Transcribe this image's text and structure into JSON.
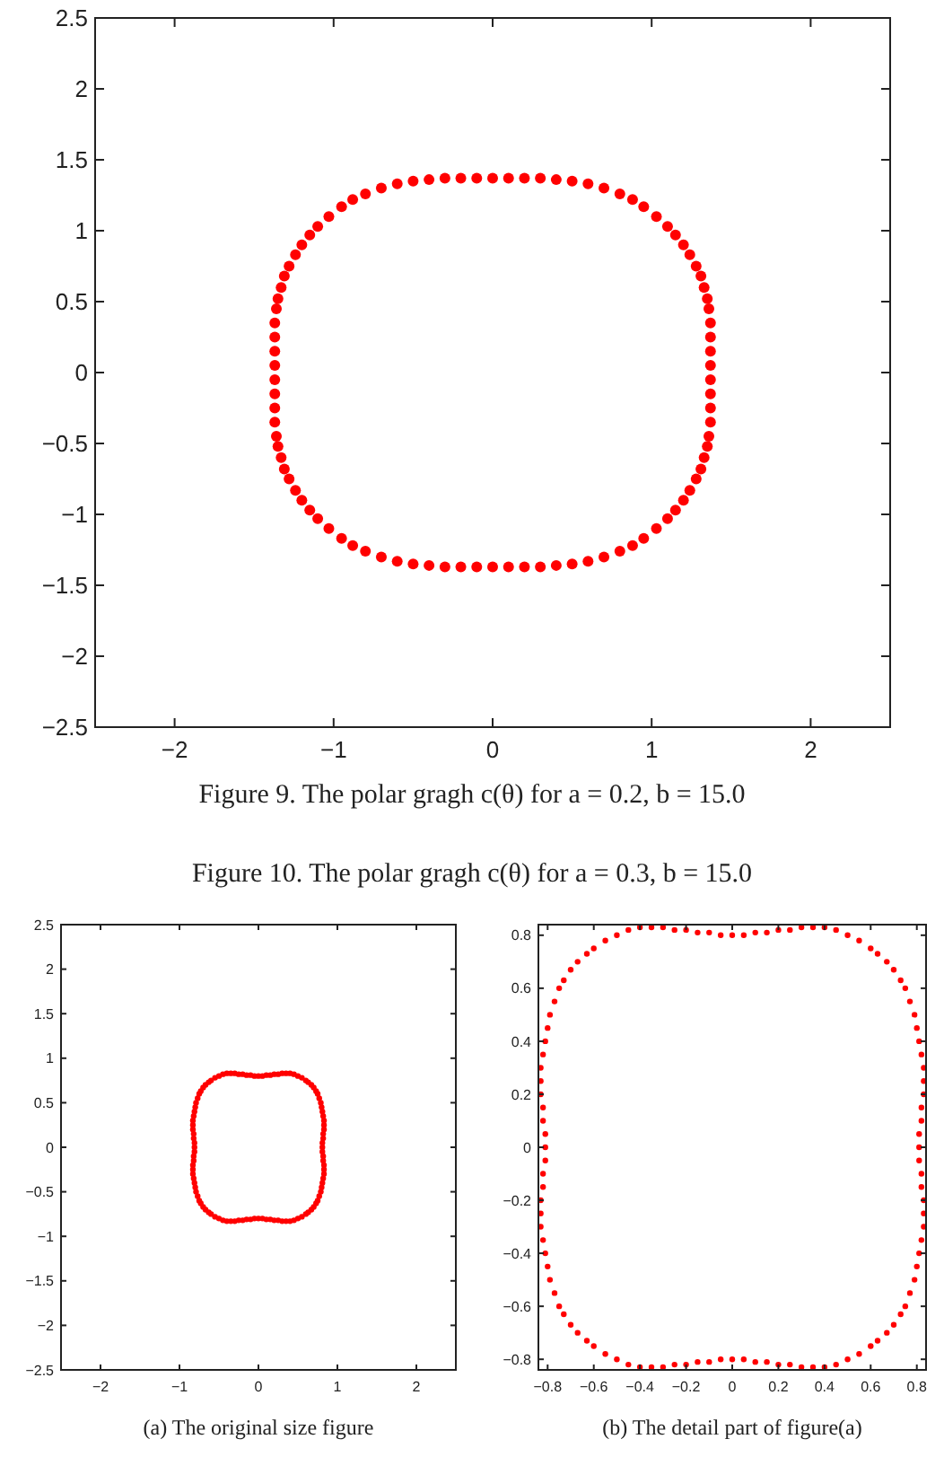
{
  "chart_data": [
    {
      "type": "scatter",
      "marker": "circle",
      "title": "Figure 9.   The polar gragh c(θ) for a = 0.2, b = 15.0",
      "xlim": [
        -2.5,
        2.5
      ],
      "ylim": [
        -2.5,
        2.5
      ],
      "xticks": [
        -2,
        -1,
        0,
        1,
        2
      ],
      "yticks": [
        -2.5,
        -2,
        -1.5,
        -1,
        -0.5,
        0,
        0.5,
        1,
        1.5,
        2,
        2.5
      ],
      "grid": false,
      "series": [
        {
          "color": "#ff0000",
          "x": [
            0,
            0.1,
            0.2,
            0.3,
            0.4,
            0.5,
            0.6,
            0.7,
            0.8,
            0.88,
            0.95,
            1.03,
            1.1,
            1.15,
            1.2,
            1.24,
            1.28,
            1.31,
            1.33,
            1.35,
            1.36,
            1.37,
            1.37,
            1.37,
            1.37,
            1.37,
            1.37,
            1.37,
            1.37,
            1.36,
            1.35,
            1.33,
            1.31,
            1.28,
            1.24,
            1.2,
            1.15,
            1.1,
            1.03,
            0.95,
            0.88,
            0.8,
            0.7,
            0.6,
            0.5,
            0.4,
            0.3,
            0.2,
            0.1,
            0,
            -0.1,
            -0.2,
            -0.3,
            -0.4,
            -0.5,
            -0.6,
            -0.7,
            -0.8,
            -0.88,
            -0.95,
            -1.03,
            -1.1,
            -1.15,
            -1.2,
            -1.24,
            -1.28,
            -1.31,
            -1.33,
            -1.35,
            -1.36,
            -1.37,
            -1.37,
            -1.37,
            -1.37,
            -1.37,
            -1.37,
            -1.37,
            -1.37,
            -1.36,
            -1.35,
            -1.33,
            -1.31,
            -1.28,
            -1.24,
            -1.2,
            -1.15,
            -1.1,
            -1.03,
            -0.95,
            -0.88,
            -0.8,
            -0.7,
            -0.6,
            -0.5,
            -0.4,
            -0.3,
            -0.2,
            -0.1
          ],
          "values": [
            1.37,
            1.37,
            1.37,
            1.37,
            1.36,
            1.35,
            1.33,
            1.3,
            1.26,
            1.22,
            1.17,
            1.1,
            1.03,
            0.97,
            0.9,
            0.83,
            0.75,
            0.68,
            0.6,
            0.52,
            0.45,
            0.35,
            0.25,
            0.15,
            0.05,
            -0.05,
            -0.15,
            -0.25,
            -0.35,
            -0.45,
            -0.52,
            -0.6,
            -0.68,
            -0.75,
            -0.83,
            -0.9,
            -0.97,
            -1.03,
            -1.1,
            -1.17,
            -1.22,
            -1.26,
            -1.3,
            -1.33,
            -1.35,
            -1.36,
            -1.37,
            -1.37,
            -1.37,
            -1.37,
            -1.37,
            -1.37,
            -1.37,
            -1.36,
            -1.35,
            -1.33,
            -1.3,
            -1.26,
            -1.22,
            -1.17,
            -1.1,
            -1.03,
            -0.97,
            -0.9,
            -0.83,
            -0.75,
            -0.68,
            -0.6,
            -0.52,
            -0.45,
            -0.35,
            -0.25,
            -0.15,
            -0.05,
            0.05,
            0.15,
            0.25,
            0.35,
            0.45,
            0.52,
            0.6,
            0.68,
            0.75,
            0.83,
            0.9,
            0.97,
            1.03,
            1.1,
            1.17,
            1.22,
            1.26,
            1.3,
            1.33,
            1.35,
            1.36,
            1.37,
            1.37,
            1.37
          ]
        }
      ]
    },
    {
      "type": "scatter",
      "marker": "circle",
      "title": "Figure 10.   The polar gragh c(θ) for a = 0.3, b = 15.0",
      "annotations": [
        "(a)  The original size figure"
      ],
      "xlim": [
        -2.5,
        2.5
      ],
      "ylim": [
        -2.5,
        2.5
      ],
      "xticks": [
        -2,
        -1,
        0,
        1,
        2
      ],
      "yticks": [
        -2.5,
        -2,
        -1.5,
        -1,
        -0.5,
        0,
        0.5,
        1,
        1.5,
        2,
        2.5
      ],
      "grid": false,
      "series": [
        {
          "color": "#ff0000",
          "x": [
            0,
            0.05,
            0.1,
            0.15,
            0.2,
            0.25,
            0.3,
            0.35,
            0.4,
            0.45,
            0.5,
            0.55,
            0.6,
            0.63,
            0.67,
            0.7,
            0.73,
            0.75,
            0.77,
            0.79,
            0.8,
            0.81,
            0.82,
            0.83,
            0.83,
            0.83,
            0.82,
            0.82,
            0.81,
            0.81,
            0.81,
            0.82,
            0.82,
            0.83,
            0.83,
            0.83,
            0.82,
            0.81,
            0.8,
            0.79,
            0.77,
            0.75,
            0.73,
            0.7,
            0.67,
            0.63,
            0.6,
            0.55,
            0.5,
            0.45,
            0.4,
            0.35,
            0.3,
            0.25,
            0.2,
            0.15,
            0.1,
            0.05,
            0,
            -0.05,
            -0.1,
            -0.15,
            -0.2,
            -0.25,
            -0.3,
            -0.35,
            -0.4,
            -0.45,
            -0.5,
            -0.55,
            -0.6,
            -0.63,
            -0.67,
            -0.7,
            -0.73,
            -0.75,
            -0.77,
            -0.79,
            -0.8,
            -0.81,
            -0.82,
            -0.83,
            -0.83,
            -0.83,
            -0.82,
            -0.82,
            -0.81,
            -0.81,
            -0.81,
            -0.82,
            -0.82,
            -0.83,
            -0.83,
            -0.83,
            -0.82,
            -0.81,
            -0.8,
            -0.79,
            -0.77,
            -0.75,
            -0.73,
            -0.7,
            -0.67,
            -0.63,
            -0.6,
            -0.55,
            -0.5,
            -0.45,
            -0.4,
            -0.35,
            -0.3,
            -0.25,
            -0.2,
            -0.15,
            -0.1,
            -0.05
          ],
          "values": [
            0.8,
            0.8,
            0.81,
            0.81,
            0.82,
            0.82,
            0.83,
            0.83,
            0.83,
            0.82,
            0.8,
            0.78,
            0.75,
            0.73,
            0.7,
            0.67,
            0.63,
            0.6,
            0.55,
            0.5,
            0.45,
            0.4,
            0.35,
            0.3,
            0.25,
            0.2,
            0.15,
            0.1,
            0.05,
            0,
            -0.05,
            -0.1,
            -0.15,
            -0.2,
            -0.25,
            -0.3,
            -0.35,
            -0.4,
            -0.45,
            -0.5,
            -0.55,
            -0.6,
            -0.63,
            -0.67,
            -0.7,
            -0.73,
            -0.75,
            -0.78,
            -0.8,
            -0.82,
            -0.83,
            -0.83,
            -0.83,
            -0.82,
            -0.82,
            -0.81,
            -0.81,
            -0.8,
            -0.8,
            -0.8,
            -0.81,
            -0.81,
            -0.82,
            -0.82,
            -0.83,
            -0.83,
            -0.83,
            -0.82,
            -0.8,
            -0.78,
            -0.75,
            -0.73,
            -0.7,
            -0.67,
            -0.63,
            -0.6,
            -0.55,
            -0.5,
            -0.45,
            -0.4,
            -0.35,
            -0.3,
            -0.25,
            -0.2,
            -0.15,
            -0.1,
            -0.05,
            0,
            0.05,
            0.1,
            0.15,
            0.2,
            0.25,
            0.3,
            0.35,
            0.4,
            0.45,
            0.5,
            0.55,
            0.6,
            0.63,
            0.67,
            0.7,
            0.73,
            0.75,
            0.78,
            0.8,
            0.82,
            0.83,
            0.83,
            0.83,
            0.82,
            0.82,
            0.81,
            0.81,
            0.8
          ]
        }
      ]
    },
    {
      "type": "scatter",
      "marker": "circle",
      "annotations": [
        "(b)  The detail part of figure(a)"
      ],
      "xlim": [
        -0.84,
        0.84
      ],
      "ylim": [
        -0.84,
        0.84
      ],
      "xticks": [
        -0.8,
        -0.6,
        -0.4,
        -0.2,
        0,
        0.2,
        0.4,
        0.6,
        0.8
      ],
      "yticks": [
        -0.8,
        -0.6,
        -0.4,
        -0.2,
        0,
        0.2,
        0.4,
        0.6,
        0.8
      ],
      "grid": false,
      "series": [
        {
          "color": "#ff0000",
          "x": [
            0,
            0.05,
            0.1,
            0.15,
            0.2,
            0.25,
            0.3,
            0.35,
            0.4,
            0.45,
            0.5,
            0.55,
            0.6,
            0.63,
            0.67,
            0.7,
            0.73,
            0.75,
            0.77,
            0.79,
            0.8,
            0.81,
            0.82,
            0.83,
            0.83,
            0.83,
            0.82,
            0.82,
            0.81,
            0.81,
            0.81,
            0.82,
            0.82,
            0.83,
            0.83,
            0.83,
            0.82,
            0.81,
            0.8,
            0.79,
            0.77,
            0.75,
            0.73,
            0.7,
            0.67,
            0.63,
            0.6,
            0.55,
            0.5,
            0.45,
            0.4,
            0.35,
            0.3,
            0.25,
            0.2,
            0.15,
            0.1,
            0.05,
            0,
            -0.05,
            -0.1,
            -0.15,
            -0.2,
            -0.25,
            -0.3,
            -0.35,
            -0.4,
            -0.45,
            -0.5,
            -0.55,
            -0.6,
            -0.63,
            -0.67,
            -0.7,
            -0.73,
            -0.75,
            -0.77,
            -0.79,
            -0.8,
            -0.81,
            -0.82,
            -0.83,
            -0.83,
            -0.83,
            -0.82,
            -0.82,
            -0.81,
            -0.81,
            -0.81,
            -0.82,
            -0.82,
            -0.83,
            -0.83,
            -0.83,
            -0.82,
            -0.81,
            -0.8,
            -0.79,
            -0.77,
            -0.75,
            -0.73,
            -0.7,
            -0.67,
            -0.63,
            -0.6,
            -0.55,
            -0.5,
            -0.45,
            -0.4,
            -0.35,
            -0.3,
            -0.25,
            -0.2,
            -0.15,
            -0.1,
            -0.05
          ],
          "values": [
            0.8,
            0.8,
            0.81,
            0.81,
            0.82,
            0.82,
            0.83,
            0.83,
            0.83,
            0.82,
            0.8,
            0.78,
            0.75,
            0.73,
            0.7,
            0.67,
            0.63,
            0.6,
            0.55,
            0.5,
            0.45,
            0.4,
            0.35,
            0.3,
            0.25,
            0.2,
            0.15,
            0.1,
            0.05,
            0,
            -0.05,
            -0.1,
            -0.15,
            -0.2,
            -0.25,
            -0.3,
            -0.35,
            -0.4,
            -0.45,
            -0.5,
            -0.55,
            -0.6,
            -0.63,
            -0.67,
            -0.7,
            -0.73,
            -0.75,
            -0.78,
            -0.8,
            -0.82,
            -0.83,
            -0.83,
            -0.83,
            -0.82,
            -0.82,
            -0.81,
            -0.81,
            -0.8,
            -0.8,
            -0.8,
            -0.81,
            -0.81,
            -0.82,
            -0.82,
            -0.83,
            -0.83,
            -0.83,
            -0.82,
            -0.8,
            -0.78,
            -0.75,
            -0.73,
            -0.7,
            -0.67,
            -0.63,
            -0.6,
            -0.55,
            -0.5,
            -0.45,
            -0.4,
            -0.35,
            -0.3,
            -0.25,
            -0.2,
            -0.15,
            -0.1,
            -0.05,
            0,
            0.05,
            0.1,
            0.15,
            0.2,
            0.25,
            0.3,
            0.35,
            0.4,
            0.45,
            0.5,
            0.55,
            0.6,
            0.63,
            0.67,
            0.7,
            0.73,
            0.75,
            0.78,
            0.8,
            0.82,
            0.83,
            0.83,
            0.83,
            0.82,
            0.82,
            0.81,
            0.81,
            0.8
          ]
        }
      ]
    }
  ]
}
